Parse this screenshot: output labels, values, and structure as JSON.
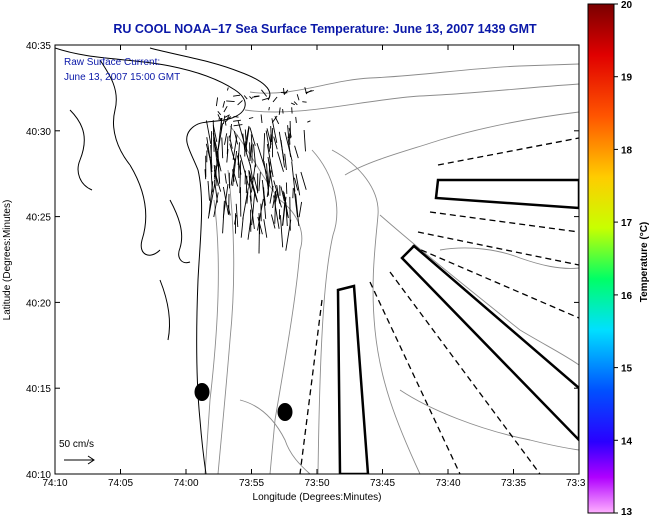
{
  "title": "RU COOL  NOAA–17  Sea Surface Temperature:  June 13, 2007 1439 GMT",
  "annotation": {
    "line1": "Raw Surface Current:",
    "line2": "June 13, 2007 15:00 GMT"
  },
  "scale_label": "50 cm/s",
  "axes": {
    "xlabel": "Longitude (Degrees:Minutes)",
    "ylabel": "Latitude (Degrees:Minutes)",
    "x_ticks": [
      "74:10",
      "74:05",
      "74:00",
      "73:55",
      "73:50",
      "73:45",
      "73:40",
      "73:35",
      "73:3"
    ],
    "y_ticks": [
      "40:35",
      "40:30",
      "40:25",
      "40:20",
      "40:15",
      "40:10"
    ]
  },
  "colorbar": {
    "label": "Temperature (°C)",
    "min": 13,
    "max": 20,
    "ticks": [
      "20",
      "19",
      "18",
      "17",
      "16",
      "15",
      "14",
      "13"
    ],
    "colors": [
      "#8b0000",
      "#ff0000",
      "#ff8c00",
      "#ffff00",
      "#00ff00",
      "#00ffff",
      "#0000ff",
      "#8a2be2",
      "#ff80ff"
    ]
  },
  "markers": {
    "count": 2,
    "color": "#000000"
  }
}
